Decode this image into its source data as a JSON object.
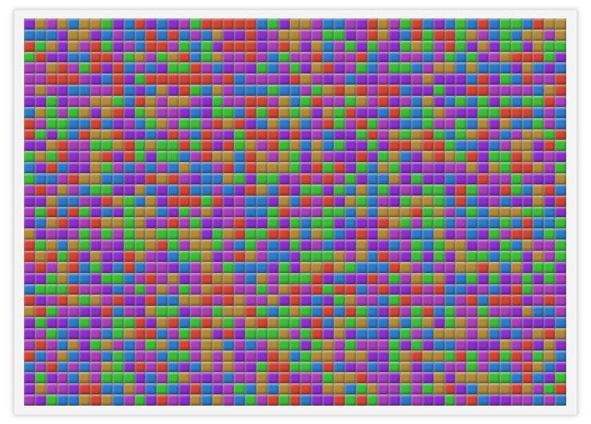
{
  "game": {
    "board": {
      "columns": 49,
      "rows": 35,
      "palette": [
        {
          "name": "purple",
          "color": "#8b2fc9"
        },
        {
          "name": "red",
          "color": "#cf4434"
        },
        {
          "name": "blue",
          "color": "#2e79c8"
        },
        {
          "name": "green",
          "color": "#3cbb39"
        },
        {
          "name": "tan",
          "color": "#b08a3a"
        },
        {
          "name": "magenta",
          "color": "#a83fb8"
        }
      ],
      "seed": 1337
    }
  }
}
